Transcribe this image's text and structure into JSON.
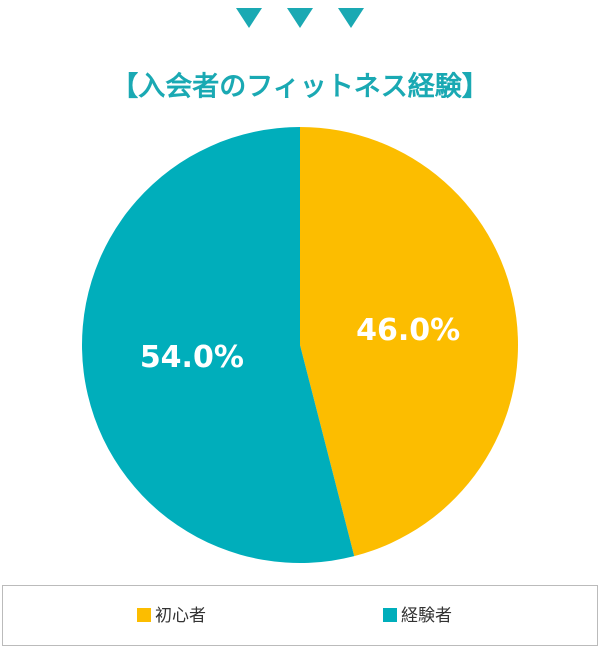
{
  "chart_data": {
    "type": "pie",
    "title": "【入会者のフィットネス経験】",
    "categories": [
      "初心者",
      "経験者"
    ],
    "values": [
      46.0,
      54.0
    ],
    "value_labels": [
      "46.0%",
      "54.0%"
    ],
    "colors": [
      "#fcbd00",
      "#00aebb"
    ]
  }
}
